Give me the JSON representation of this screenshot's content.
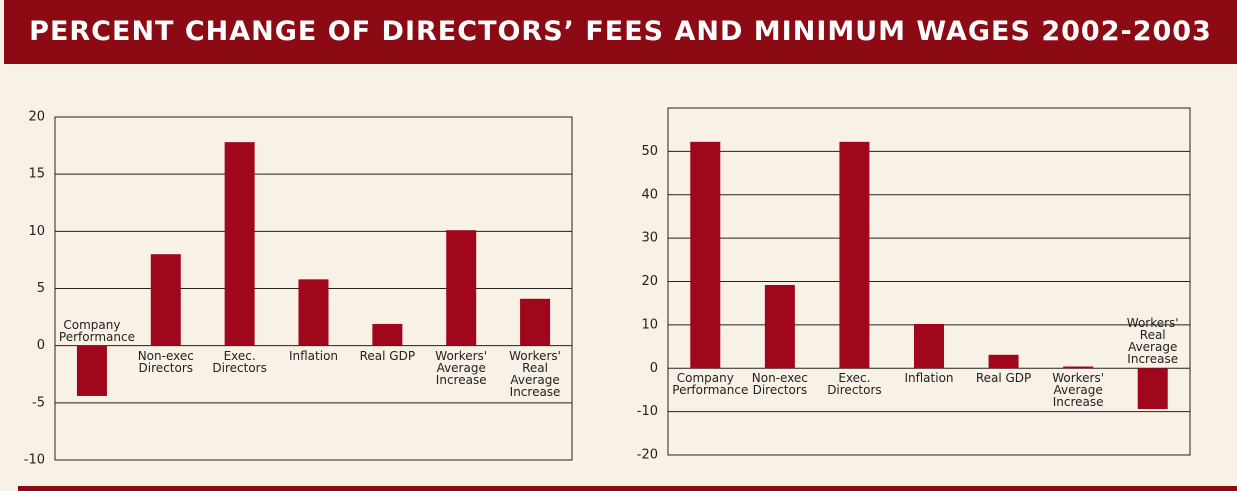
{
  "title": "PERCENT CHANGE OF DIRECTORS’ FEES AND MINIMUM WAGES 2002-2003",
  "chart_data": [
    {
      "type": "bar",
      "categories": [
        "Company Performance",
        "Non-exec Directors",
        "Exec. Directors",
        "Inflation",
        "Real GDP",
        "Workers' Average Increase",
        "Workers' Real Average Increase"
      ],
      "values": [
        -4.4,
        8.0,
        17.8,
        5.8,
        1.9,
        10.1,
        4.1
      ],
      "color": "#a0061c",
      "ylim": [
        -10,
        20
      ],
      "yticks": [
        -10,
        -5,
        0,
        5,
        10,
        15,
        20
      ],
      "grid": true
    },
    {
      "type": "bar",
      "categories": [
        "Company Performance",
        "Non-exec Directors",
        "Exec. Directors",
        "Inflation",
        "Real GDP",
        "Workers' Average Increase",
        "Workers' Real Average Increase"
      ],
      "values": [
        52.2,
        19.2,
        52.2,
        10.2,
        3.1,
        0.4,
        -9.4
      ],
      "color": "#a0061c",
      "ylim": [
        -20,
        60
      ],
      "yticks": [
        -20,
        -10,
        0,
        10,
        20,
        30,
        40,
        50
      ],
      "grid": true
    }
  ]
}
